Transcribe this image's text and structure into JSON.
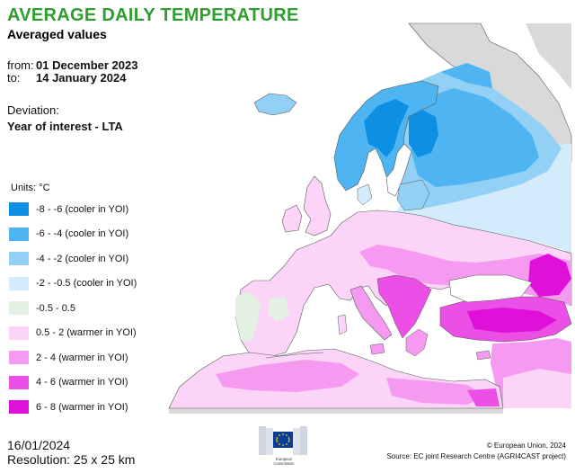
{
  "title": "AVERAGE DAILY TEMPERATURE",
  "subtitle": "Averaged values",
  "period": {
    "from_label": "from:",
    "from_value": "01 December 2023",
    "to_label": "to:",
    "to_value": "14 January 2024"
  },
  "deviation": {
    "label": "Deviation:",
    "value": "Year of interest - LTA"
  },
  "legend": {
    "units": "Units: °C",
    "items": [
      {
        "label": "-8 - -6 (cooler in YOI)",
        "color": "#0d8fe4"
      },
      {
        "label": "-6 - -4 (cooler in YOI)",
        "color": "#4fb5f2"
      },
      {
        "label": "-4 - -2 (cooler in YOI)",
        "color": "#92d0f6"
      },
      {
        "label": "-2 - -0.5 (cooler in YOI)",
        "color": "#d3ecfb"
      },
      {
        "label": "-0.5 - 0.5",
        "color": "#e3f1e4"
      },
      {
        "label": "0.5 - 2 (warmer in YOI)",
        "color": "#fbd4f8"
      },
      {
        "label": "2 - 4 (warmer in YOI)",
        "color": "#f59af0"
      },
      {
        "label": "4 - 6 (warmer in YOI)",
        "color": "#ec4fe6"
      },
      {
        "label": "6 - 8 (warmer in YOI)",
        "color": "#df10da"
      }
    ]
  },
  "footer": {
    "date": "16/01/2024",
    "resolution": "Resolution: 25 x 25 km"
  },
  "logo": {
    "line1": "European",
    "line2": "Commission"
  },
  "credits": {
    "copyright": "© European Union, 2024",
    "source": "Source: EC joint Research Centre (AGRI4CAST project)"
  },
  "colors": {
    "title": "#2e9e2e",
    "sea": "#ffffff",
    "no_data": "#d9d9d9",
    "coast": "#5a5a5a",
    "eu_blue": "#0a3c96",
    "eu_yellow": "#ffd200"
  }
}
